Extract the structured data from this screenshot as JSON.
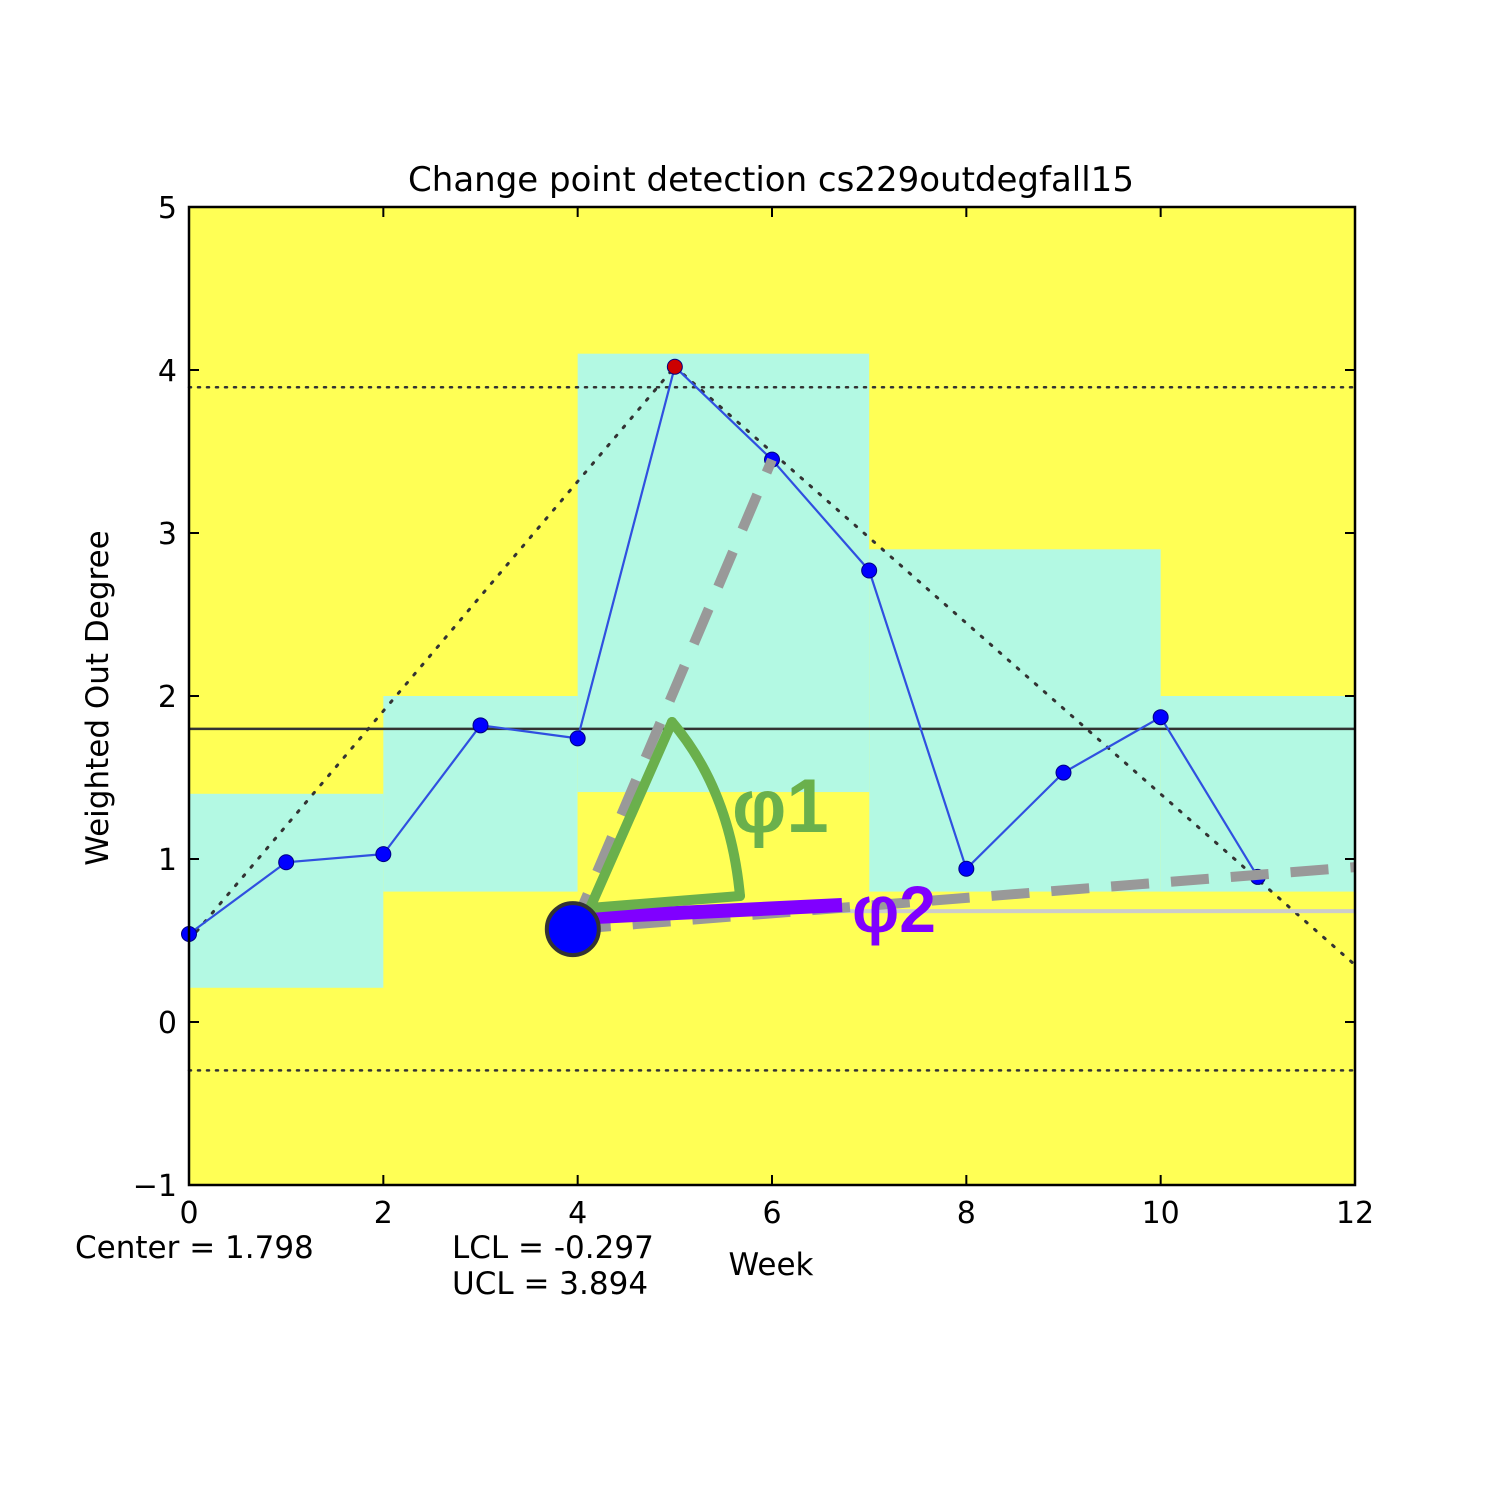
{
  "chart_data": {
    "type": "line",
    "title": "Change point detection cs229outdegfall15",
    "xlabel": "Week",
    "ylabel": "Weighted Out Degree",
    "xlim": [
      0,
      12
    ],
    "ylim": [
      -1,
      5
    ],
    "xticks": [
      "0",
      "2",
      "4",
      "6",
      "8",
      "10",
      "12"
    ],
    "yticks": [
      "−1",
      "0",
      "1",
      "2",
      "3",
      "4",
      "5"
    ],
    "grid": false,
    "series": [
      {
        "x": [
          0,
          1,
          2,
          3,
          4,
          5,
          6,
          7,
          8,
          9,
          10,
          11
        ],
        "values": [
          0.54,
          0.98,
          1.03,
          1.82,
          1.74,
          4.02,
          3.45,
          2.77,
          0.94,
          1.53,
          1.87,
          0.89
        ],
        "color": "#0000ff",
        "line_color": "#3050e0",
        "highlighted_point": {
          "x": 5,
          "y": 4.02,
          "color": "#cc0000"
        }
      }
    ],
    "center_line": 1.798,
    "control_limits": {
      "lcl": -0.297,
      "ucl": 3.894
    },
    "bands": [
      {
        "x0": 0,
        "x1": 2,
        "y0": 0.21,
        "y1": 1.4
      },
      {
        "x0": 2,
        "x1": 4,
        "y0": 0.8,
        "y1": 2.0
      },
      {
        "x0": 4,
        "x1": 7,
        "y0": 1.41,
        "y1": 4.1
      },
      {
        "x0": 7,
        "x1": 10,
        "y0": 0.8,
        "y1": 2.9
      },
      {
        "x0": 10,
        "x1": 12,
        "y0": 0.8,
        "y1": 2.0
      }
    ],
    "bands_inner_yellow": {
      "x0": 4,
      "x1": 7,
      "y0": 0.8,
      "y1": 1.41
    },
    "dotted_trend_lines": [
      {
        "x0": 0,
        "y0": 0.5,
        "x1": 5,
        "y1": 4.02
      },
      {
        "x0": 5,
        "y0": 4.02,
        "x1": 12,
        "y1": 0.35
      }
    ],
    "annotations": {
      "origin_point": {
        "x": 3.95,
        "y": 0.57
      },
      "dashed_line_steep": {
        "x0": 3.95,
        "y0": 0.57,
        "x1": 6.0,
        "y1": 3.45
      },
      "dashed_line_shallow": {
        "x0": 3.95,
        "y0": 0.57,
        "x1": 12.0,
        "y1": 0.95
      },
      "reference_line": {
        "x0": 3.95,
        "y0": 0.68,
        "x1": 12.0,
        "y1": 0.68
      },
      "phi1_label": "φ1",
      "phi2_label": "φ2",
      "phi1_color": "#6ab04c",
      "phi2_color": "#8000ff"
    },
    "stats": {
      "center": "Center = 1.798",
      "lcl": "LCL = -0.297",
      "ucl": "UCL = 3.894"
    },
    "colors": {
      "background": "#ffff55",
      "band": "#b3f9e3",
      "center_line": "#333333",
      "dotted": "#333333",
      "dashed": "#999999",
      "reference": "#cccccc"
    }
  }
}
